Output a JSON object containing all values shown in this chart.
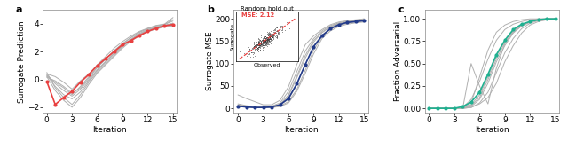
{
  "panel_a": {
    "label": "a",
    "ylabel": "Surrogate Prediction",
    "xlabel": "Iteration",
    "xlim": [
      -0.5,
      15.5
    ],
    "ylim": [
      -2.4,
      5.0
    ],
    "yticks": [
      -2,
      0,
      2,
      4
    ],
    "xticks": [
      0,
      3,
      6,
      9,
      12,
      15
    ],
    "mean_line": [
      -0.15,
      -1.8,
      -1.3,
      -0.85,
      -0.2,
      0.35,
      1.0,
      1.5,
      2.0,
      2.5,
      2.8,
      3.15,
      3.45,
      3.68,
      3.85,
      3.95
    ],
    "bg_lines": [
      [
        0.35,
        -0.3,
        -0.8,
        -1.2,
        -0.7,
        -0.0,
        0.7,
        1.3,
        1.9,
        2.45,
        2.9,
        3.3,
        3.58,
        3.78,
        3.9,
        4.0
      ],
      [
        0.3,
        -0.5,
        -1.1,
        -1.4,
        -0.9,
        -0.1,
        0.65,
        1.25,
        1.85,
        2.4,
        2.85,
        3.25,
        3.55,
        3.75,
        3.88,
        4.05
      ],
      [
        0.15,
        -0.1,
        -0.5,
        -1.0,
        -0.6,
        0.1,
        0.85,
        1.45,
        2.05,
        2.55,
        3.0,
        3.38,
        3.65,
        3.85,
        3.95,
        4.2
      ],
      [
        0.5,
        -0.6,
        -1.3,
        -1.8,
        -1.1,
        -0.2,
        0.55,
        1.15,
        1.75,
        2.35,
        2.82,
        3.22,
        3.52,
        3.72,
        3.85,
        3.9
      ],
      [
        0.4,
        0.2,
        -0.2,
        -0.7,
        -0.1,
        0.4,
        1.05,
        1.65,
        2.25,
        2.72,
        3.12,
        3.45,
        3.68,
        3.88,
        3.98,
        4.45
      ],
      [
        0.2,
        -0.8,
        -1.5,
        -2.0,
        -1.3,
        -0.35,
        0.45,
        1.05,
        1.65,
        2.25,
        2.75,
        3.12,
        3.42,
        3.62,
        3.78,
        3.85
      ],
      [
        0.25,
        -0.2,
        -0.6,
        -1.1,
        -0.5,
        0.2,
        0.88,
        1.48,
        2.08,
        2.58,
        3.02,
        3.4,
        3.65,
        3.85,
        3.95,
        4.3
      ]
    ],
    "mean_color": "#e84040",
    "bg_color": "#b0b0b0",
    "mean_lw": 1.2,
    "bg_lw": 0.7,
    "mean_ms": 3.0
  },
  "panel_b": {
    "label": "b",
    "ylabel": "Surrogate MSE",
    "xlabel": "Iteration",
    "xlim": [
      -0.5,
      15.5
    ],
    "ylim": [
      -10,
      220
    ],
    "yticks": [
      0,
      50,
      100,
      150,
      200
    ],
    "xticks": [
      0,
      3,
      6,
      9,
      12,
      15
    ],
    "mean_line": [
      5,
      3,
      2,
      2,
      3,
      8,
      22,
      55,
      98,
      138,
      162,
      178,
      187,
      192,
      194,
      196
    ],
    "bg_lines": [
      [
        8,
        5,
        3,
        2,
        2,
        5,
        15,
        42,
        85,
        130,
        160,
        177,
        185,
        190,
        193,
        195
      ],
      [
        6,
        4,
        2,
        2,
        3,
        7,
        28,
        68,
        112,
        148,
        170,
        183,
        190,
        194,
        196,
        198
      ],
      [
        10,
        6,
        4,
        3,
        5,
        12,
        38,
        82,
        128,
        156,
        173,
        185,
        191,
        195,
        197,
        200
      ],
      [
        4,
        3,
        2,
        2,
        2,
        4,
        12,
        38,
        78,
        122,
        156,
        173,
        183,
        188,
        191,
        193
      ],
      [
        30,
        22,
        15,
        8,
        8,
        18,
        48,
        98,
        142,
        162,
        176,
        187,
        193,
        196,
        198,
        200
      ],
      [
        5,
        3,
        2,
        2,
        4,
        9,
        30,
        72,
        118,
        152,
        169,
        182,
        189,
        193,
        195,
        197
      ],
      [
        7,
        4,
        3,
        2,
        3,
        8,
        20,
        52,
        97,
        140,
        164,
        179,
        188,
        192,
        194,
        196
      ]
    ],
    "mean_color": "#223a8a",
    "bg_color": "#b0b0b0",
    "mean_lw": 1.2,
    "bg_lw": 0.7,
    "mean_ms": 3.0,
    "inset": {
      "title": "Random hold out",
      "title_fontsize": 5.0,
      "xlabel": "Observed",
      "ylabel": "Surrogate",
      "mse_text": "MSE: 2.12",
      "mse_color": "#e84040",
      "scatter_color": "#333333",
      "line_color": "#e84040",
      "bounds": [
        0.02,
        0.5,
        0.46,
        0.48
      ]
    }
  },
  "panel_c": {
    "label": "c",
    "ylabel": "Fraction Adversarial",
    "xlabel": "Iteration",
    "xlim": [
      -0.5,
      15.5
    ],
    "ylim": [
      -0.05,
      1.1
    ],
    "yticks": [
      0.0,
      0.25,
      0.5,
      0.75,
      1.0
    ],
    "xticks": [
      0,
      3,
      6,
      9,
      12,
      15
    ],
    "mean_line": [
      0.0,
      0.0,
      0.0,
      0.0,
      0.02,
      0.07,
      0.18,
      0.38,
      0.6,
      0.76,
      0.88,
      0.94,
      0.97,
      0.99,
      1.0,
      1.0
    ],
    "bg_lines": [
      [
        0.0,
        0.0,
        0.0,
        0.0,
        0.0,
        0.02,
        0.1,
        0.28,
        0.52,
        0.7,
        0.84,
        0.92,
        0.96,
        0.99,
        1.0,
        1.0
      ],
      [
        0.0,
        0.0,
        0.0,
        0.0,
        0.0,
        0.04,
        0.15,
        0.35,
        0.58,
        0.75,
        0.87,
        0.93,
        0.97,
        0.99,
        1.0,
        1.0
      ],
      [
        0.0,
        0.0,
        0.0,
        0.0,
        0.01,
        0.1,
        0.3,
        0.55,
        0.76,
        0.88,
        0.94,
        0.97,
        0.99,
        1.0,
        1.0,
        1.0
      ],
      [
        0.0,
        0.0,
        0.0,
        0.0,
        0.0,
        0.01,
        0.06,
        0.18,
        0.4,
        0.62,
        0.78,
        0.89,
        0.95,
        0.98,
        0.99,
        1.0
      ],
      [
        0.0,
        0.0,
        0.0,
        0.0,
        0.0,
        0.06,
        0.35,
        0.65,
        0.85,
        0.93,
        0.97,
        0.99,
        1.0,
        1.0,
        1.0,
        1.0
      ],
      [
        0.0,
        0.0,
        0.0,
        0.0,
        0.0,
        0.03,
        0.12,
        0.32,
        0.55,
        0.73,
        0.85,
        0.92,
        0.97,
        0.99,
        1.0,
        1.0
      ],
      [
        0.0,
        0.0,
        0.0,
        0.0,
        0.0,
        0.5,
        0.25,
        0.05,
        0.45,
        0.72,
        0.86,
        0.93,
        0.97,
        0.99,
        1.0,
        1.0
      ],
      [
        0.0,
        0.0,
        0.0,
        0.0,
        0.0,
        0.01,
        0.05,
        0.12,
        0.28,
        0.52,
        0.7,
        0.84,
        0.93,
        0.97,
        0.99,
        1.0
      ]
    ],
    "mean_color": "#20b090",
    "bg_color": "#b0b0b0",
    "mean_lw": 1.2,
    "bg_lw": 0.7,
    "mean_ms": 3.0
  },
  "fig_bg": "#ffffff",
  "label_fontsize": 8,
  "tick_fontsize": 6.5,
  "axis_label_fontsize": 6.5
}
